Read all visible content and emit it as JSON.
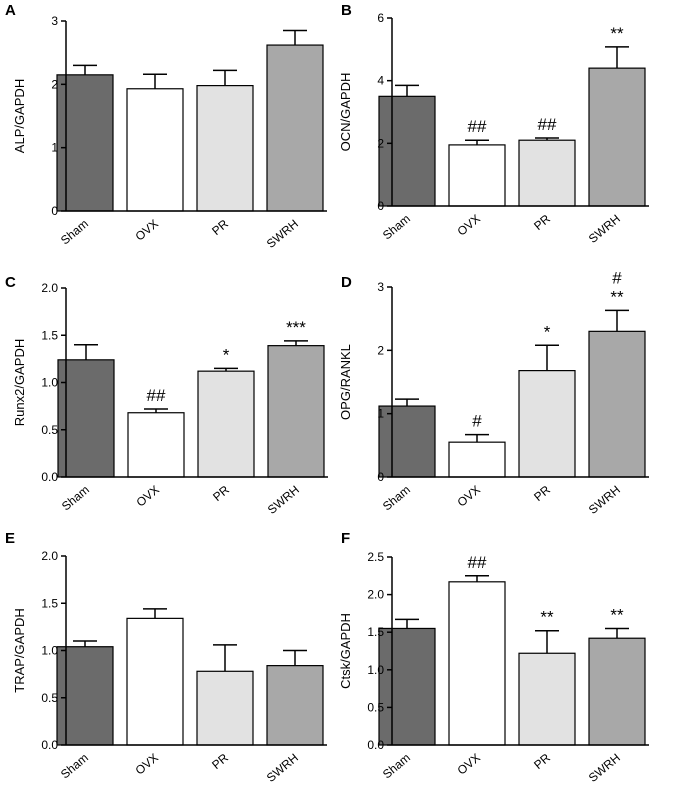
{
  "figure": {
    "groups": [
      "Sham",
      "OVX",
      "PR",
      "SWRH"
    ],
    "bar_colors": [
      "#6b6b6b",
      "#ffffff",
      "#e2e2e2",
      "#a8a8a8"
    ]
  },
  "chart_data": [
    {
      "panel": "A",
      "type": "bar",
      "ylabel": "ALP/GAPDH",
      "categories": [
        "Sham",
        "OVX",
        "PR",
        "SWRH"
      ],
      "values": [
        2.15,
        1.93,
        1.98,
        2.62
      ],
      "errors": [
        0.15,
        0.23,
        0.24,
        0.23
      ],
      "annotations": [
        "",
        "",
        "",
        ""
      ],
      "ylim": [
        0,
        3
      ],
      "yticks": [
        "0",
        "1",
        "2",
        "3"
      ],
      "ytick_values": [
        0,
        1,
        2,
        3
      ]
    },
    {
      "panel": "B",
      "type": "bar",
      "ylabel": "OCN/GAPDH",
      "categories": [
        "Sham",
        "OVX",
        "PR",
        "SWRH"
      ],
      "values": [
        3.5,
        1.95,
        2.1,
        4.4
      ],
      "errors": [
        0.35,
        0.15,
        0.07,
        0.68
      ],
      "annotations": [
        "",
        "##",
        "##",
        "**"
      ],
      "ylim": [
        0,
        6
      ],
      "yticks": [
        "0",
        "2",
        "4",
        "6"
      ],
      "ytick_values": [
        0,
        2,
        4,
        6
      ]
    },
    {
      "panel": "C",
      "type": "bar",
      "ylabel": "Runx2/GAPDH",
      "categories": [
        "Sham",
        "OVX",
        "PR",
        "SWRH"
      ],
      "values": [
        1.24,
        0.68,
        1.12,
        1.39
      ],
      "errors": [
        0.16,
        0.04,
        0.03,
        0.05
      ],
      "annotations": [
        "",
        "##",
        "*",
        "***"
      ],
      "ylim": [
        0,
        2
      ],
      "yticks": [
        "0.0",
        "0.5",
        "1.0",
        "1.5",
        "2.0"
      ],
      "ytick_values": [
        0,
        0.5,
        1,
        1.5,
        2
      ]
    },
    {
      "panel": "D",
      "type": "bar",
      "ylabel": "OPG/RANKL",
      "categories": [
        "Sham",
        "OVX",
        "PR",
        "SWRH"
      ],
      "values": [
        1.12,
        0.55,
        1.68,
        2.3
      ],
      "errors": [
        0.11,
        0.12,
        0.4,
        0.33
      ],
      "annotations": [
        "",
        "#",
        "*",
        "#|**"
      ],
      "ylim": [
        0,
        3
      ],
      "yticks": [
        "0",
        "1",
        "2",
        "3"
      ],
      "ytick_values": [
        0,
        1,
        2,
        3
      ]
    },
    {
      "panel": "E",
      "type": "bar",
      "ylabel": "TRAP/GAPDH",
      "categories": [
        "Sham",
        "OVX",
        "PR",
        "SWRH"
      ],
      "values": [
        1.04,
        1.34,
        0.78,
        0.84
      ],
      "errors": [
        0.06,
        0.1,
        0.28,
        0.16
      ],
      "annotations": [
        "",
        "",
        "",
        ""
      ],
      "ylim": [
        0,
        2
      ],
      "yticks": [
        "0.0",
        "0.5",
        "1.0",
        "1.5",
        "2.0"
      ],
      "ytick_values": [
        0,
        0.5,
        1,
        1.5,
        2
      ]
    },
    {
      "panel": "F",
      "type": "bar",
      "ylabel": "Ctsk/GAPDH",
      "categories": [
        "Sham",
        "OVX",
        "PR",
        "SWRH"
      ],
      "values": [
        1.55,
        2.17,
        1.22,
        1.42
      ],
      "errors": [
        0.12,
        0.08,
        0.3,
        0.13
      ],
      "annotations": [
        "",
        "##",
        "**",
        "**"
      ],
      "ylim": [
        0,
        2.5
      ],
      "yticks": [
        "0.0",
        "0.5",
        "1.0",
        "1.5",
        "2.0",
        "2.5"
      ],
      "ytick_values": [
        0,
        0.5,
        1,
        1.5,
        2,
        2.5
      ]
    }
  ]
}
